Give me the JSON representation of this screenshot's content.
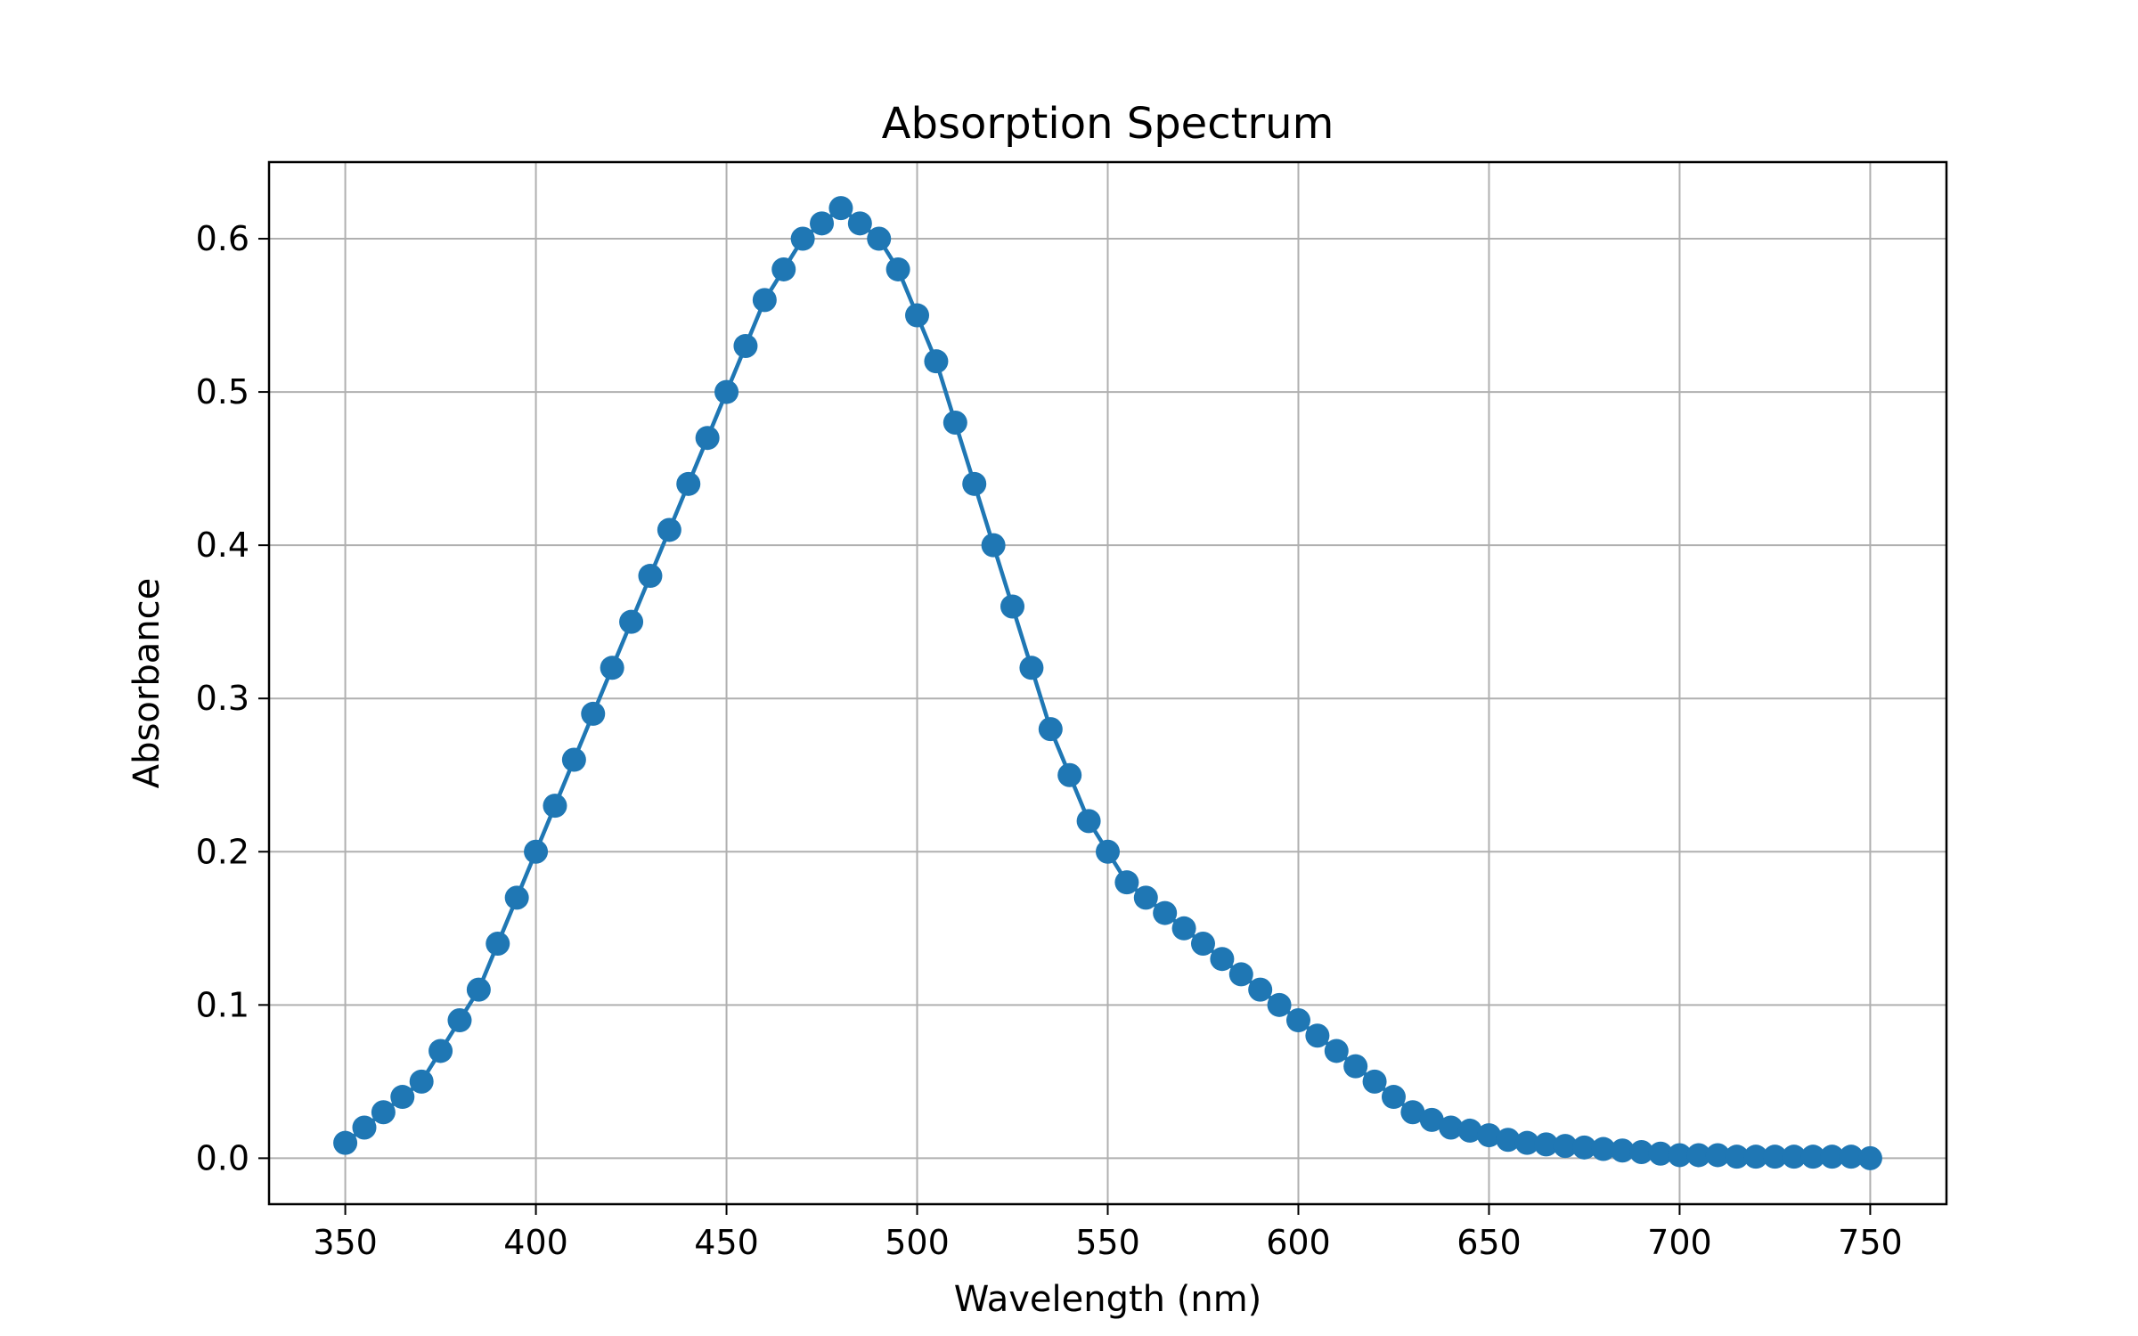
{
  "chart_data": {
    "type": "line",
    "title": "Absorption Spectrum",
    "xlabel": "Wavelength (nm)",
    "ylabel": "Absorbance",
    "xlim": [
      330,
      770
    ],
    "ylim": [
      -0.03,
      0.65
    ],
    "grid": true,
    "markers": true,
    "x_ticks": [
      {
        "value": 350,
        "label": "350"
      },
      {
        "value": 400,
        "label": "400"
      },
      {
        "value": 450,
        "label": "450"
      },
      {
        "value": 500,
        "label": "500"
      },
      {
        "value": 550,
        "label": "550"
      },
      {
        "value": 600,
        "label": "600"
      },
      {
        "value": 650,
        "label": "650"
      },
      {
        "value": 700,
        "label": "700"
      },
      {
        "value": 750,
        "label": "750"
      }
    ],
    "y_ticks": [
      {
        "value": 0.0,
        "label": "0.0"
      },
      {
        "value": 0.1,
        "label": "0.1"
      },
      {
        "value": 0.2,
        "label": "0.2"
      },
      {
        "value": 0.3,
        "label": "0.3"
      },
      {
        "value": 0.4,
        "label": "0.4"
      },
      {
        "value": 0.5,
        "label": "0.5"
      },
      {
        "value": 0.6,
        "label": "0.6"
      }
    ],
    "series": [
      {
        "color": "#1f77b4",
        "x": [
          350,
          355,
          360,
          365,
          370,
          375,
          380,
          385,
          390,
          395,
          400,
          405,
          410,
          415,
          420,
          425,
          430,
          435,
          440,
          445,
          450,
          455,
          460,
          465,
          470,
          475,
          480,
          485,
          490,
          495,
          500,
          505,
          510,
          515,
          520,
          525,
          530,
          535,
          540,
          545,
          550,
          555,
          560,
          565,
          570,
          575,
          580,
          585,
          590,
          595,
          600,
          605,
          610,
          615,
          620,
          625,
          630,
          635,
          640,
          645,
          650,
          655,
          660,
          665,
          670,
          675,
          680,
          685,
          690,
          695,
          700,
          705,
          710,
          715,
          720,
          725,
          730,
          735,
          740,
          745,
          750
        ],
        "y": [
          0.01,
          0.02,
          0.03,
          0.04,
          0.05,
          0.07,
          0.09,
          0.11,
          0.14,
          0.17,
          0.2,
          0.23,
          0.26,
          0.29,
          0.32,
          0.35,
          0.38,
          0.41,
          0.44,
          0.47,
          0.5,
          0.53,
          0.56,
          0.58,
          0.6,
          0.61,
          0.62,
          0.61,
          0.6,
          0.58,
          0.55,
          0.52,
          0.48,
          0.44,
          0.4,
          0.36,
          0.32,
          0.28,
          0.25,
          0.22,
          0.2,
          0.18,
          0.17,
          0.16,
          0.15,
          0.14,
          0.13,
          0.12,
          0.11,
          0.1,
          0.09,
          0.08,
          0.07,
          0.06,
          0.05,
          0.04,
          0.03,
          0.025,
          0.02,
          0.018,
          0.015,
          0.012,
          0.01,
          0.009,
          0.008,
          0.007,
          0.006,
          0.005,
          0.004,
          0.003,
          0.002,
          0.002,
          0.002,
          0.001,
          0.001,
          0.001,
          0.001,
          0.001,
          0.001,
          0.001,
          0.0
        ]
      }
    ]
  }
}
